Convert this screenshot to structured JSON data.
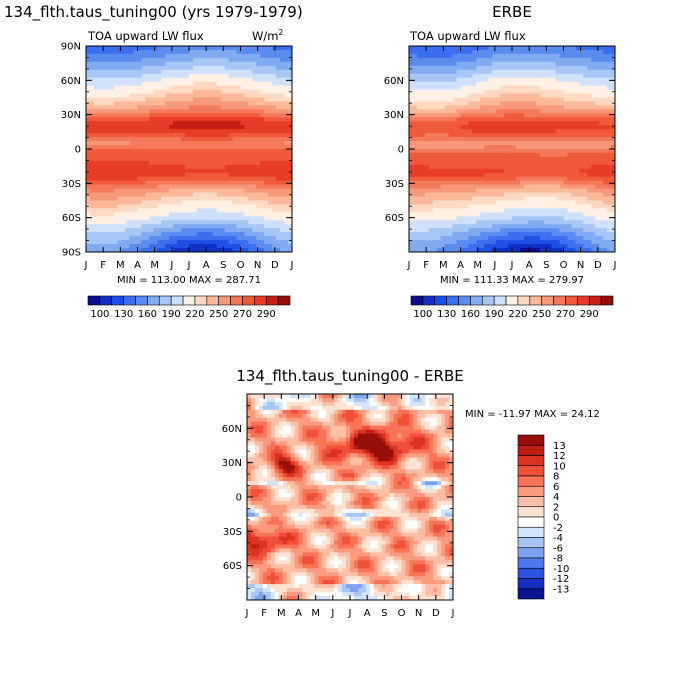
{
  "chart_data": [
    {
      "type": "heatmap",
      "title": "134_flth.taus_tuning00 (yrs 1979-1979)",
      "subtitle": "TOA upward LW flux",
      "units_base": "W/m",
      "units_exp": "2",
      "x_ticks": [
        "J",
        "F",
        "M",
        "A",
        "M",
        "J",
        "J",
        "A",
        "S",
        "O",
        "N",
        "D",
        "J"
      ],
      "y_ticks": [
        "90N",
        "60N",
        "30N",
        "0",
        "30S",
        "60S",
        "90S"
      ],
      "stats": "MIN = 113.00 MAX = 287.71",
      "colorbar_labels": [
        "100",
        "130",
        "160",
        "190",
        "220",
        "250",
        "270",
        "290"
      ],
      "value_range": [
        113.0,
        287.71
      ]
    },
    {
      "type": "heatmap",
      "title": "ERBE",
      "subtitle": "TOA upward LW flux",
      "x_ticks": [
        "J",
        "F",
        "M",
        "A",
        "M",
        "J",
        "J",
        "A",
        "S",
        "O",
        "N",
        "D",
        "J"
      ],
      "y_ticks": [
        "60N",
        "30N",
        "0",
        "30S",
        "60S"
      ],
      "stats": "MIN = 111.33 MAX = 279.97",
      "colorbar_labels": [
        "100",
        "130",
        "160",
        "190",
        "220",
        "250",
        "270",
        "290"
      ],
      "value_range": [
        111.33,
        279.97
      ]
    },
    {
      "type": "heatmap",
      "title": "134_flth.taus_tuning00 - ERBE",
      "x_ticks": [
        "J",
        "F",
        "M",
        "A",
        "M",
        "J",
        "J",
        "A",
        "S",
        "O",
        "N",
        "D",
        "J"
      ],
      "y_ticks": [
        "60N",
        "30N",
        "0",
        "30S",
        "60S"
      ],
      "stats": "MIN = -11.97 MAX =  24.12",
      "colorbar_labels": [
        "13",
        "12",
        "10",
        "8",
        "6",
        "4",
        "2",
        "0",
        "-2",
        "-4",
        "-6",
        "-8",
        "-10",
        "-12",
        "-13"
      ],
      "value_range": [
        -11.97,
        24.12
      ]
    }
  ],
  "colors": {
    "seq": [
      "#0c0c8c",
      "#1230c8",
      "#1e50e6",
      "#3c6ef0",
      "#5a8cf0",
      "#82aaf0",
      "#a6c6f5",
      "#cfe0fa",
      "#fff0e6",
      "#ffd9c2",
      "#fcb99a",
      "#f8987a",
      "#f4785a",
      "#f05a3c",
      "#e63c28",
      "#c81e14",
      "#960f0a"
    ],
    "diff": [
      "#960f0a",
      "#be1e14",
      "#dc3222",
      "#f0503a",
      "#f77456",
      "#fb9a7e",
      "#fdbea6",
      "#ffe2d2",
      "#ffffff",
      "#d2e4fa",
      "#a8c6f5",
      "#7aa2f0",
      "#5078ec",
      "#2c52e0",
      "#1430c0",
      "#0a128c"
    ]
  }
}
